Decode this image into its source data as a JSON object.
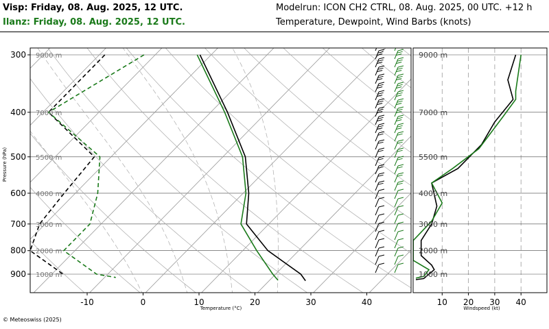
{
  "header": {
    "location1": "Visp: Friday, 08. Aug. 2025, 12 UTC.",
    "location2": "Ilanz: Friday, 08. Aug. 2025, 12 UTC.",
    "modelrun": "Modelrun: ICON CH2 CTRL, 08. Aug. 2025, 00 UTC. +12 h",
    "params": "Temperature, Dewpoint, Wind Barbs (knots)"
  },
  "footer": {
    "copyright": "© Meteoswiss (2025)"
  },
  "colors": {
    "series1": "#000000",
    "series2": "#1a7a1a",
    "grid": "#999999"
  },
  "chart_data": [
    {
      "type": "line",
      "subtype": "skew-t",
      "xlabel": "Temperature (°C)",
      "ylabel": "Pressure (hPa)",
      "xticks": [
        "-10",
        "0",
        "10",
        "20",
        "30",
        "40"
      ],
      "yticks": [
        "300",
        "400",
        "500",
        "600",
        "700",
        "800",
        "900"
      ],
      "height_labels": [
        "9000 m",
        "7000 m",
        "5500 m",
        "4000 m",
        "3000 m",
        "2000 m",
        "1000 m"
      ],
      "pressure_levels": [
        300,
        400,
        500,
        600,
        700,
        800,
        900
      ],
      "xlim": [
        -20,
        47
      ],
      "ylim": [
        1000,
        290
      ],
      "series": [
        {
          "name": "Visp",
          "temperature": [
            [
              -32,
              300
            ],
            [
              -17,
              400
            ],
            [
              -6,
              500
            ],
            [
              1,
              600
            ],
            [
              6,
              700
            ],
            [
              14.5,
              800
            ],
            [
              24.5,
              900
            ],
            [
              26.5,
              930
            ]
          ],
          "dewpoint": [
            [
              -49,
              300
            ],
            [
              -49,
              400
            ],
            [
              -33,
              500
            ],
            [
              -32,
              600
            ],
            [
              -31,
              700
            ],
            [
              -28,
              800
            ],
            [
              -18,
              900
            ],
            [
              -18,
              905
            ]
          ]
        },
        {
          "name": "Ilanz",
          "temperature": [
            [
              -32.5,
              300
            ],
            [
              -17.5,
              400
            ],
            [
              -6.5,
              500
            ],
            [
              0.5,
              600
            ],
            [
              5,
              700
            ],
            [
              12.5,
              800
            ],
            [
              19.5,
              900
            ],
            [
              21.5,
              928
            ]
          ],
          "dewpoint": [
            [
              -42,
              300
            ],
            [
              -49,
              400
            ],
            [
              -32,
              500
            ],
            [
              -26,
              600
            ],
            [
              -22,
              700
            ],
            [
              -22,
              800
            ],
            [
              -12,
              900
            ],
            [
              -8,
              915
            ]
          ]
        }
      ]
    },
    {
      "type": "line",
      "xlabel": "Windspeed (kt)",
      "xticks": [
        "10",
        "20",
        "30",
        "40"
      ],
      "height_labels": [
        "9000 m",
        "7000 m",
        "5500 m",
        "4000 m",
        "3000 m",
        "2000 m",
        "1000 m"
      ],
      "xlim": [
        -1,
        48
      ],
      "series": [
        {
          "name": "Visp",
          "points": [
            [
              38,
              300
            ],
            [
              35,
              340
            ],
            [
              37,
              375
            ],
            [
              30,
              420
            ],
            [
              25,
              470
            ],
            [
              16,
              530
            ],
            [
              6,
              570
            ],
            [
              8,
              640
            ],
            [
              6,
              700
            ],
            [
              2,
              760
            ],
            [
              2,
              820
            ],
            [
              6,
              860
            ],
            [
              7,
              880
            ],
            [
              3,
              920
            ],
            [
              0,
              925
            ]
          ]
        },
        {
          "name": "Ilanz",
          "points": [
            [
              40,
              300
            ],
            [
              38,
              360
            ],
            [
              38,
              375
            ],
            [
              33,
              410
            ],
            [
              24,
              480
            ],
            [
              14,
              530
            ],
            [
              6,
              570
            ],
            [
              10,
              630
            ],
            [
              6,
              690
            ],
            [
              -1,
              760
            ],
            [
              -1,
              840
            ],
            [
              5,
              880
            ],
            [
              3,
              910
            ],
            [
              0,
              918
            ]
          ]
        }
      ]
    }
  ]
}
